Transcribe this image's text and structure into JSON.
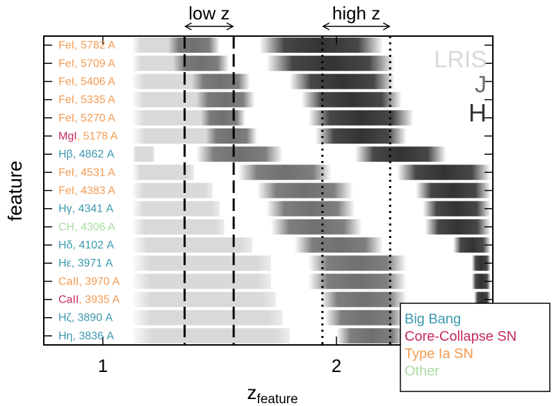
{
  "chart_data": {
    "type": "bar",
    "orientation": "horizontal-ranges",
    "xlabel": "z",
    "xlabel_subscript": "feature",
    "ylabel": "feature",
    "xlim": [
      0.62,
      2.68
    ],
    "xticks": [
      1,
      2
    ],
    "grid": false,
    "instruments": [
      {
        "name": "LRIS",
        "color": "#d9d9d9"
      },
      {
        "name": "J",
        "color": "#707070"
      },
      {
        "name": "H",
        "color": "#333333"
      }
    ],
    "windows": [
      {
        "label": "low z",
        "lo": 1.35,
        "hi": 1.56,
        "style": "dashed"
      },
      {
        "label": "high z",
        "lo": 1.94,
        "hi": 2.23,
        "style": "dotted"
      }
    ],
    "legend": {
      "placement": "bottom-right",
      "entries": [
        {
          "name": "Big Bang",
          "color": "#3b98ae"
        },
        {
          "name": "Core-Collapse SN",
          "color": "#c42a58"
        },
        {
          "name": "Type Ia SN",
          "color": "#f39b52"
        },
        {
          "name": "Other",
          "color": "#a8dca0"
        }
      ]
    },
    "features": [
      {
        "label": "FeI, 5782 A",
        "source": "Type Ia SN",
        "ranges": {
          "LRIS": [
            1.13,
            1.38
          ],
          "J": [
            1.28,
            1.5
          ],
          "H": [
            1.67,
            2.2
          ]
        }
      },
      {
        "label": "FeI, 5709 A",
        "source": "Type Ia SN",
        "ranges": {
          "LRIS": [
            1.13,
            1.4
          ],
          "J": [
            1.3,
            1.54
          ],
          "H": [
            1.7,
            2.25
          ]
        }
      },
      {
        "label": "FeI, 5406 A",
        "source": "Type Ia SN",
        "ranges": {
          "LRIS": [
            1.13,
            1.48
          ],
          "J": [
            1.38,
            1.63
          ],
          "H": [
            1.8,
            2.25
          ]
        }
      },
      {
        "label": "FeI, 5335 A",
        "source": "Type Ia SN",
        "ranges": {
          "LRIS": [
            1.13,
            1.5
          ],
          "J": [
            1.4,
            1.65
          ],
          "H": [
            1.85,
            2.28
          ]
        }
      },
      {
        "label": "FeI, 5270 A",
        "source": "Type Ia SN",
        "ranges": {
          "LRIS": [
            1.13,
            1.52
          ],
          "J": [
            1.42,
            1.61
          ],
          "H": [
            1.88,
            2.33
          ]
        }
      },
      {
        "label": "MgI, 5178 A",
        "source": "Core-Collapse SN",
        "ranges": {
          "LRIS": [
            1.13,
            1.55
          ],
          "J": [
            1.44,
            1.66
          ],
          "H": [
            1.91,
            2.3
          ]
        }
      },
      {
        "label": "Hβ, 4862 A",
        "source": "Big Bang",
        "ranges": {
          "LRIS": [
            1.13,
            1.22
          ],
          "J": [
            1.4,
            1.77
          ],
          "H": [
            2.08,
            2.47
          ]
        }
      },
      {
        "label": "FeI, 4531 A",
        "source": "Type Ia SN",
        "ranges": {
          "LRIS": [
            1.13,
            1.39
          ],
          "J": [
            1.58,
            1.98
          ],
          "H": [
            2.26,
            2.66
          ]
        }
      },
      {
        "label": "FeI, 4383 A",
        "source": "Type Ia SN",
        "ranges": {
          "LRIS": [
            1.13,
            1.47
          ],
          "J": [
            1.66,
            2.07
          ],
          "H": [
            2.34,
            2.66
          ]
        }
      },
      {
        "label": "Hγ, 4341 A",
        "source": "Big Bang",
        "ranges": {
          "LRIS": [
            1.13,
            1.5
          ],
          "J": [
            1.7,
            2.08
          ],
          "H": [
            2.37,
            2.66
          ]
        }
      },
      {
        "label": "CH, 4306 A",
        "source": "Other",
        "ranges": {
          "LRIS": [
            1.13,
            1.52
          ],
          "J": [
            1.72,
            2.11
          ],
          "H": [
            2.38,
            2.66
          ]
        }
      },
      {
        "label": "Hδ, 4102 A",
        "source": "Big Bang",
        "ranges": {
          "LRIS": [
            1.13,
            1.64
          ],
          "J": [
            1.82,
            2.2
          ],
          "H": [
            2.5,
            2.66
          ]
        }
      },
      {
        "label": "Hε, 3971 A",
        "source": "Big Bang",
        "ranges": {
          "LRIS": [
            1.13,
            1.72
          ],
          "J": [
            1.88,
            2.3
          ],
          "H": [
            2.58,
            2.66
          ]
        }
      },
      {
        "label": "CaII, 3970 A",
        "source": "Type Ia SN",
        "ranges": {
          "LRIS": [
            1.13,
            1.72
          ],
          "J": [
            1.88,
            2.3
          ],
          "H": [
            2.58,
            2.66
          ]
        }
      },
      {
        "label": "CaII, 3935 A",
        "source": "Core-Collapse SN",
        "ranges": {
          "LRIS": [
            1.13,
            1.74
          ],
          "J": [
            1.93,
            2.3
          ],
          "H": [
            2.59,
            2.66
          ]
        }
      },
      {
        "label": "Hζ, 3890 A",
        "source": "Big Bang",
        "ranges": {
          "LRIS": [
            1.13,
            1.77
          ],
          "J": [
            1.95,
            2.3
          ],
          "H": [
            2.63,
            2.66
          ]
        }
      },
      {
        "label": "Hη, 3836 A",
        "source": "Big Bang",
        "ranges": {
          "LRIS": [
            1.13,
            1.8
          ],
          "J": [
            2.0,
            2.3
          ],
          "H": [
            2.64,
            2.66
          ]
        }
      }
    ]
  }
}
